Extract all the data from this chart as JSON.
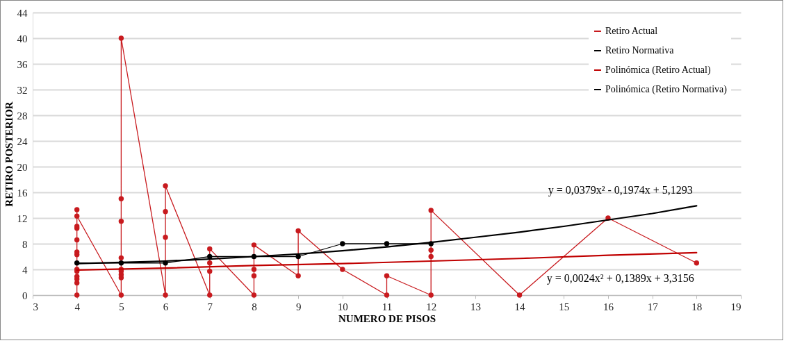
{
  "chart_data": {
    "type": "line",
    "xlabel": "NUMERO DE PISOS",
    "ylabel": "RETIRO POSTERIOR",
    "xlim": [
      3,
      19
    ],
    "xticks": [
      3,
      4,
      5,
      6,
      7,
      8,
      9,
      10,
      11,
      12,
      13,
      14,
      15,
      16,
      17,
      18,
      19
    ],
    "ylim": [
      0,
      44
    ],
    "yticks": [
      0,
      4,
      8,
      12,
      16,
      20,
      24,
      28,
      32,
      36,
      40,
      44
    ],
    "grid": "y",
    "legend": "top right",
    "series": [
      {
        "name": "Retiro Actual",
        "color": "#c81a1e",
        "marker": "circle",
        "x": [
          4,
          4,
          4,
          4,
          4,
          4,
          4,
          4,
          4,
          4,
          4,
          4,
          4,
          5,
          5,
          5,
          5,
          5,
          5,
          5,
          5,
          5,
          6,
          6,
          6,
          6,
          7,
          7,
          7,
          7,
          8,
          8,
          8,
          8,
          9,
          9,
          10,
          11,
          11,
          12,
          12,
          12,
          12,
          14,
          16,
          18
        ],
        "values": [
          13.3,
          0,
          1.9,
          2.5,
          2.9,
          3.7,
          4.0,
          6.3,
          6.7,
          8.6,
          10.4,
          10.7,
          12.3,
          0,
          2.7,
          3.2,
          3.7,
          4.0,
          5.8,
          11.5,
          15,
          40,
          0,
          9,
          13,
          17,
          0,
          3.7,
          5,
          7.2,
          0,
          3,
          4,
          7.8,
          3,
          10,
          4,
          0,
          3,
          0,
          6,
          7,
          13.2,
          0,
          12,
          5
        ]
      },
      {
        "name": "Retiro Normativa",
        "color": "#000000",
        "marker": "circle",
        "x": [
          4,
          5,
          6,
          7,
          8,
          9,
          10,
          11,
          12
        ],
        "values": [
          5,
          5,
          5,
          6,
          6,
          6,
          8,
          8,
          8
        ]
      },
      {
        "name": "Polinómica (Retiro Actual)",
        "color": "#c00000",
        "marker": "none",
        "x": [
          4,
          6,
          8,
          10,
          12,
          14,
          16,
          18
        ],
        "values": [
          3.9,
          4.2,
          4.6,
          4.9,
          5.3,
          5.7,
          6.2,
          6.6
        ]
      },
      {
        "name": "Polinómica (Retiro Normativa)",
        "color": "#000000",
        "marker": "none",
        "x": [
          4,
          5,
          6,
          7,
          8,
          9,
          10,
          11,
          12,
          13,
          14,
          15,
          16,
          17,
          18
        ],
        "values": [
          4.9,
          5.1,
          5.3,
          5.6,
          6.0,
          6.4,
          6.9,
          7.5,
          8.2,
          9.0,
          9.8,
          10.7,
          11.7,
          12.7,
          13.9
        ]
      }
    ],
    "annotations": [
      "y = 0,0379x² - 0,1974x + 5,1293",
      "y = 0,0024x² + 0,1389x + 3,3156"
    ]
  }
}
